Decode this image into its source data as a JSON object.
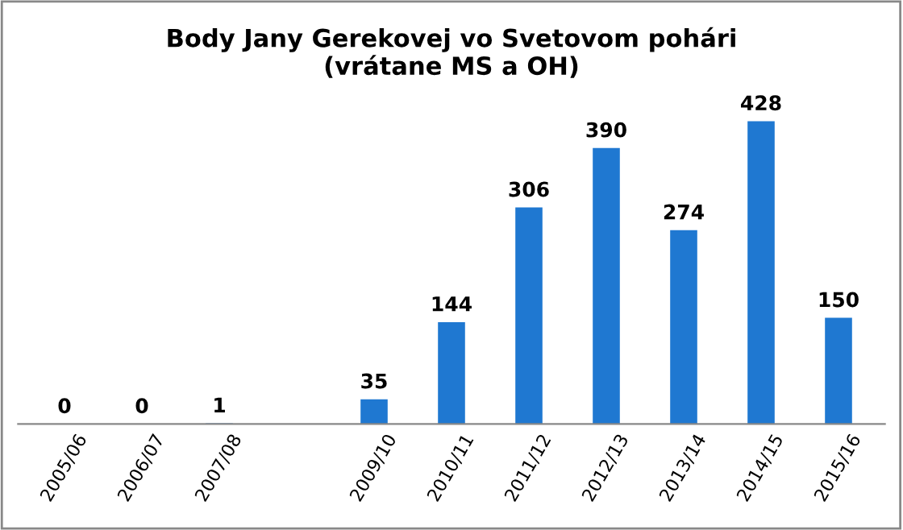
{
  "chart_data": {
    "type": "bar",
    "title": "Body Jany Gerekovej vo Svetovom pohári\n(vrátane MS a OH)",
    "categories": [
      "2005/06",
      "2006/07",
      "2007/08",
      null,
      "2009/10",
      "2010/11",
      "2011/12",
      "2012/13",
      "2013/14",
      "2014/15",
      "2015/16"
    ],
    "values": [
      0,
      0,
      1,
      null,
      35,
      144,
      306,
      390,
      274,
      428,
      150
    ],
    "color": "#1f78d1",
    "data_labels": true,
    "tick_labels": "x",
    "grid": false,
    "legend": false
  }
}
